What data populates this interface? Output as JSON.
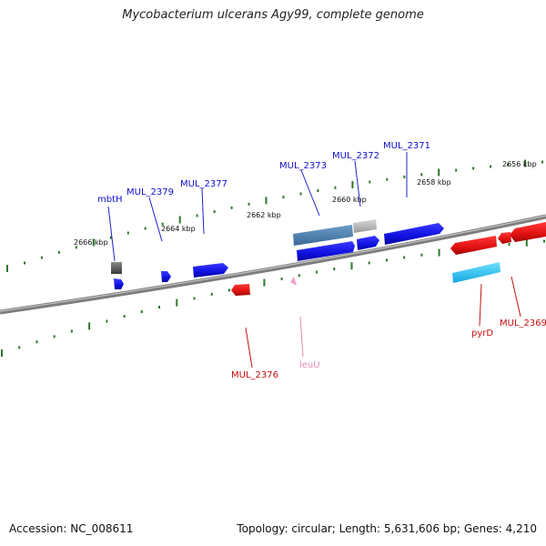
{
  "title": "Mycobacterium ulcerans Agy99, complete genome",
  "footer": {
    "accession": "Accession: NC_008611",
    "summary": "Topology: circular; Length: 5,631,606 bp; Genes: 4,210"
  },
  "scale_labels": [
    "2666 kbp",
    "2664 kbp",
    "2662 kbp",
    "2660 kbp",
    "2658 kbp",
    "2656 kbp"
  ],
  "gene_labels": {
    "mbtH": "mbtH",
    "MUL_2379": "MUL_2379",
    "MUL_2377": "MUL_2377",
    "MUL_2373": "MUL_2373",
    "MUL_2372": "MUL_2372",
    "MUL_2371": "MUL_2371",
    "pyrD": "pyrD",
    "MUL_2369": "MUL_2369",
    "MUL_2376": "MUL_2376",
    "leuU": "leuU"
  },
  "colors": {
    "forward_cds": "#1414e0",
    "reverse_cds": "#e01414",
    "trna": "#f2a0c8",
    "backbone": "#888888",
    "ticks": "#2a7a2a"
  }
}
